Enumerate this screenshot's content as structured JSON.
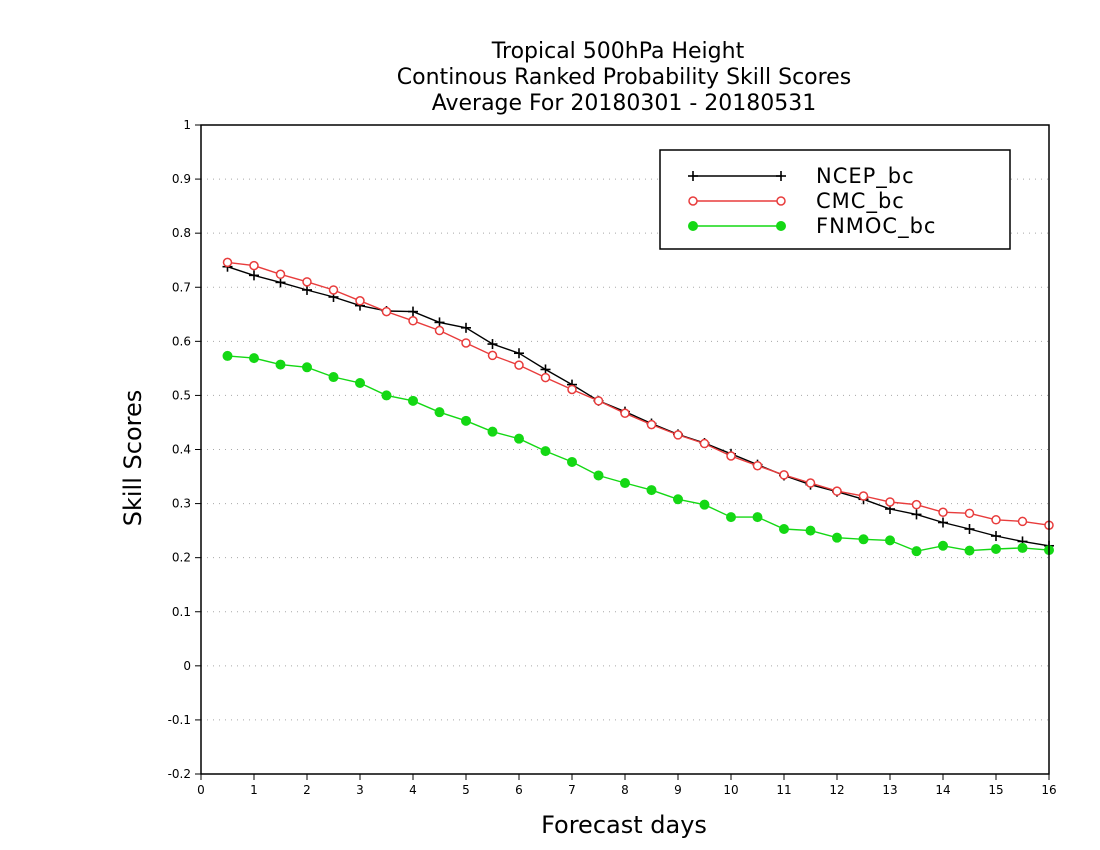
{
  "chart_data": {
    "type": "line",
    "title_lines": [
      "Tropical 500hPa Height",
      "Continous Ranked Probability Skill Scores",
      "Average For 20180301 - 20180531"
    ],
    "xlabel": "Forecast days",
    "ylabel": "Skill Scores",
    "xlim": [
      0,
      16
    ],
    "ylim": [
      -0.2,
      1
    ],
    "xticks": [
      "0",
      "1",
      "2",
      "3",
      "4",
      "5",
      "6",
      "7",
      "8",
      "9",
      "10",
      "11",
      "12",
      "13",
      "14",
      "15",
      "16"
    ],
    "yticks": [
      "1",
      "0.9",
      "0.8",
      "0.7",
      "0.6",
      "0.5",
      "0.4",
      "0.3",
      "0.2",
      "0.1",
      "0",
      "-0.1",
      "-0.2"
    ],
    "grid": true,
    "legend_position": "top-right",
    "x": [
      0.5,
      1,
      1.5,
      2,
      2.5,
      3,
      3.5,
      4,
      4.5,
      5,
      5.5,
      6,
      6.5,
      7,
      7.5,
      8,
      8.5,
      9,
      9.5,
      10,
      10.5,
      11,
      11.5,
      12,
      12.5,
      13,
      13.5,
      14,
      14.5,
      15,
      15.5,
      16
    ],
    "series": [
      {
        "name": "NCEP_bc",
        "color": "#000000",
        "marker": "plus",
        "values": [
          0.738,
          0.722,
          0.709,
          0.695,
          0.682,
          0.666,
          0.656,
          0.655,
          0.635,
          0.625,
          0.595,
          0.578,
          0.548,
          0.52,
          0.49,
          0.47,
          0.448,
          0.428,
          0.412,
          0.392,
          0.372,
          0.352,
          0.335,
          0.322,
          0.308,
          0.29,
          0.28,
          0.265,
          0.253,
          0.24,
          0.23,
          0.222
        ]
      },
      {
        "name": "CMC_bc",
        "color": "#e83c3c",
        "marker": "open-circle",
        "values": [
          0.746,
          0.74,
          0.724,
          0.71,
          0.695,
          0.675,
          0.655,
          0.638,
          0.62,
          0.597,
          0.574,
          0.556,
          0.533,
          0.511,
          0.49,
          0.467,
          0.446,
          0.427,
          0.411,
          0.388,
          0.37,
          0.353,
          0.338,
          0.323,
          0.314,
          0.303,
          0.298,
          0.284,
          0.282,
          0.27,
          0.267,
          0.26
        ]
      },
      {
        "name": "FNMOC_bc",
        "color": "#14d814",
        "marker": "filled-circle",
        "values": [
          0.573,
          0.569,
          0.557,
          0.552,
          0.534,
          0.523,
          0.5,
          0.49,
          0.469,
          0.453,
          0.433,
          0.42,
          0.397,
          0.377,
          0.352,
          0.338,
          0.325,
          0.308,
          0.298,
          0.275,
          0.275,
          0.253,
          0.25,
          0.237,
          0.234,
          0.232,
          0.212,
          0.222,
          0.213,
          0.216,
          0.218,
          0.214
        ]
      }
    ]
  }
}
